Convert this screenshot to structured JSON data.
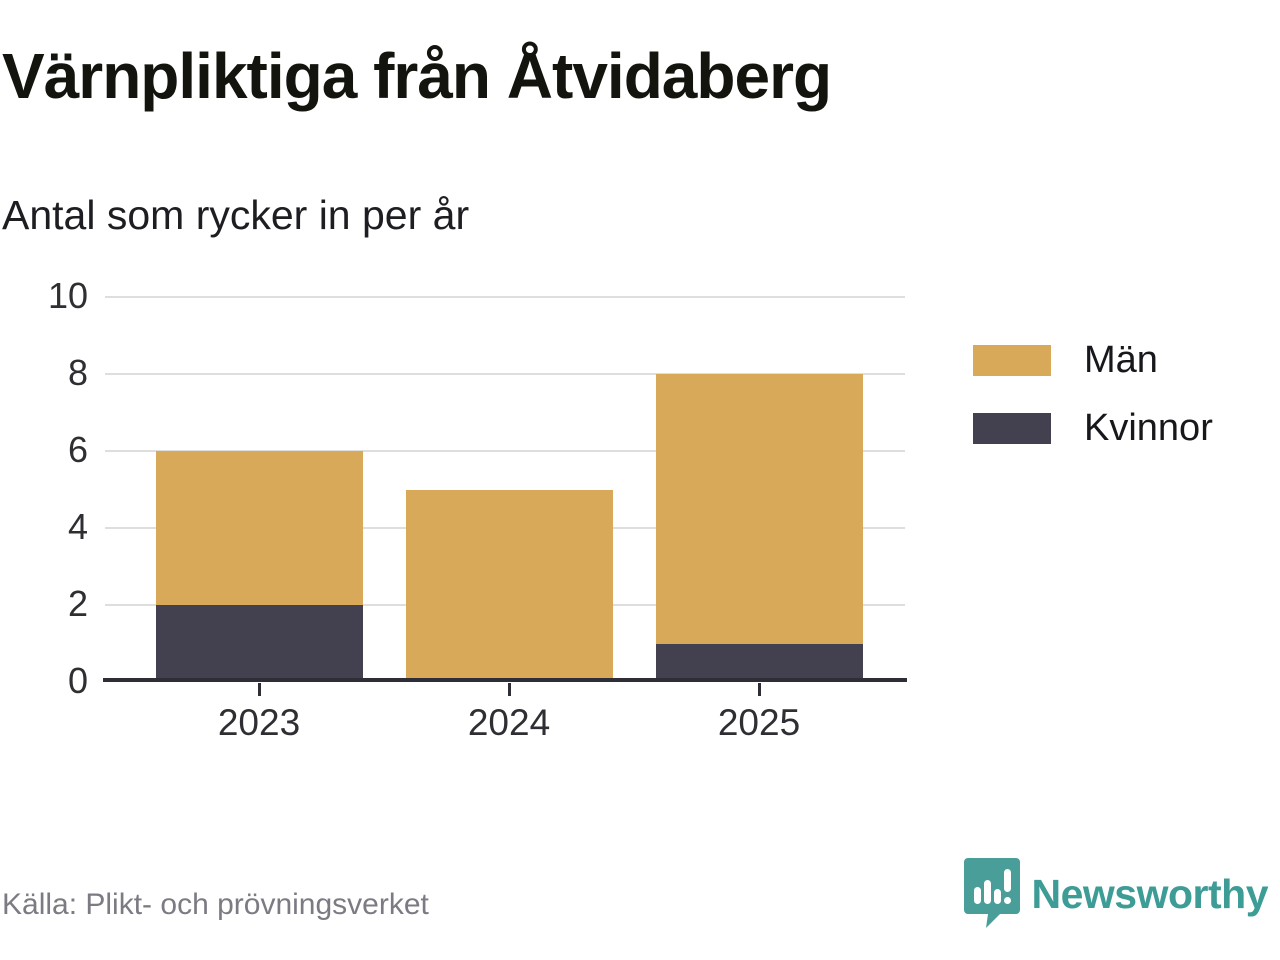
{
  "header": {
    "title": "Värnpliktiga från Åtvidaberg",
    "subtitle": "Antal som rycker in per år"
  },
  "chart_data": {
    "type": "bar",
    "stacked": true,
    "title": "Värnpliktiga från Åtvidaberg",
    "subtitle": "Antal som rycker in per år",
    "categories": [
      "2023",
      "2024",
      "2025"
    ],
    "series": [
      {
        "name": "Män",
        "color": "#D9A95A",
        "values": [
          4,
          5,
          7
        ]
      },
      {
        "name": "Kvinnor",
        "color": "#43414F",
        "values": [
          2,
          0,
          1
        ]
      }
    ],
    "stack_bottom_to_top": [
      "Kvinnor",
      "Män"
    ],
    "stack_totals": [
      6,
      5,
      8
    ],
    "xlabel": "",
    "ylabel": "",
    "ylim": [
      0,
      10
    ],
    "yticks": [
      0,
      2,
      4,
      6,
      8,
      10
    ],
    "grid": true,
    "legend_position": "right"
  },
  "footer": {
    "source": "Källa: Plikt- och prövningsverket",
    "brand": "Newsworthy"
  },
  "colors": {
    "men": "#D9A95A",
    "women": "#43414F",
    "axis": "#2F2E36",
    "grid": "#DEDEDE",
    "brand_teal": "#3D9C96",
    "brand_icon_teal": "#4A9E99",
    "source_text": "#7B7B83"
  }
}
